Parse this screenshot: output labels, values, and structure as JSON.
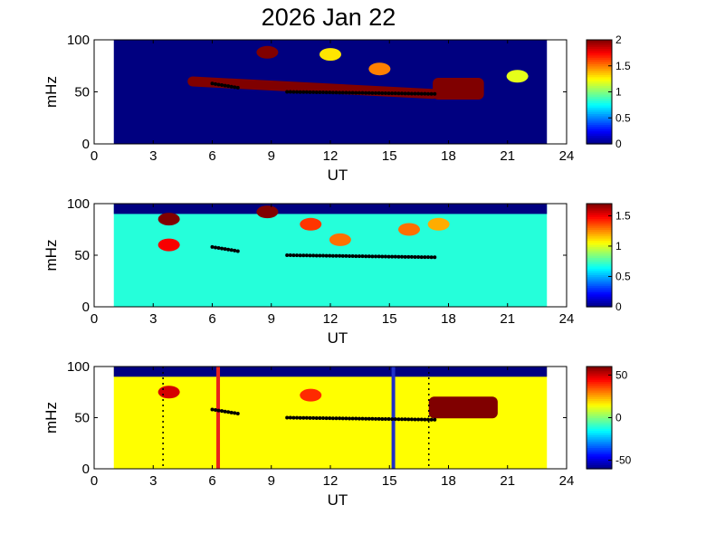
{
  "title": "2026 Jan 22",
  "chart_data": [
    {
      "type": "heatmap",
      "xlabel": "UT",
      "ylabel": "mHz",
      "xlim": [
        0,
        24
      ],
      "ylim": [
        0,
        100
      ],
      "xticks": [
        "0",
        "3",
        "6",
        "9",
        "12",
        "15",
        "18",
        "21",
        "24"
      ],
      "yticks": [
        "0",
        "50",
        "100"
      ],
      "data_range_ut": [
        1.0,
        23.0
      ],
      "colorbar": {
        "min": 0,
        "max": 2,
        "ticks": [
          "0",
          "0.5",
          "1",
          "1.5",
          "2"
        ]
      },
      "background_level": 0,
      "features": [
        {
          "ut_start": 5.0,
          "ut_end": 17.2,
          "mhz_start": 60,
          "mhz_end": 48,
          "level": 2.0,
          "description": "band"
        },
        {
          "ut_start": 17.2,
          "ut_end": 19.8,
          "mhz": 53,
          "level": 2.0
        },
        {
          "ut": 8.8,
          "mhz": 88,
          "level": 2.0
        },
        {
          "ut": 12.0,
          "mhz": 86,
          "level": 1.3
        },
        {
          "ut": 14.5,
          "mhz": 72,
          "level": 1.5
        },
        {
          "ut": 21.5,
          "mhz": 65,
          "level": 1.2
        }
      ],
      "markers": [
        {
          "ut_start": 6.0,
          "ut_end": 7.3,
          "mhz_start": 58,
          "mhz_end": 54
        },
        {
          "ut_start": 9.8,
          "ut_end": 17.3,
          "mhz_start": 50,
          "mhz_end": 48
        }
      ]
    },
    {
      "type": "heatmap",
      "xlabel": "UT",
      "ylabel": "mHz",
      "xlim": [
        0,
        24
      ],
      "ylim": [
        0,
        100
      ],
      "xticks": [
        "0",
        "3",
        "6",
        "9",
        "12",
        "15",
        "18",
        "21",
        "24"
      ],
      "yticks": [
        "0",
        "50",
        "100"
      ],
      "data_range_ut": [
        1.0,
        23.0
      ],
      "colorbar": {
        "min": 0,
        "max": 1.7,
        "ticks": [
          "0",
          "0.5",
          "1",
          "1.5"
        ]
      },
      "background_level": 0.7,
      "top_cutoff_mhz": 90,
      "features": [
        {
          "ut": 3.8,
          "mhz": 85,
          "level": 1.7
        },
        {
          "ut": 3.8,
          "mhz": 60,
          "level": 1.5
        },
        {
          "ut": 8.8,
          "mhz": 92,
          "level": 1.7
        },
        {
          "ut": 11.0,
          "mhz": 80,
          "level": 1.4
        },
        {
          "ut": 12.5,
          "mhz": 65,
          "level": 1.3
        },
        {
          "ut": 16.0,
          "mhz": 75,
          "level": 1.3
        },
        {
          "ut": 17.5,
          "mhz": 80,
          "level": 1.2
        }
      ],
      "markers": [
        {
          "ut_start": 6.0,
          "ut_end": 7.3,
          "mhz_start": 58,
          "mhz_end": 54
        },
        {
          "ut_start": 9.8,
          "ut_end": 17.3,
          "mhz_start": 50,
          "mhz_end": 48
        }
      ]
    },
    {
      "type": "heatmap",
      "xlabel": "UT",
      "ylabel": "mHz",
      "xlim": [
        0,
        24
      ],
      "ylim": [
        0,
        100
      ],
      "xticks": [
        "0",
        "3",
        "6",
        "9",
        "12",
        "15",
        "18",
        "21",
        "24"
      ],
      "yticks": [
        "0",
        "50",
        "100"
      ],
      "data_range_ut": [
        1.0,
        23.0
      ],
      "colorbar": {
        "min": -60,
        "max": 60,
        "ticks": [
          "-50",
          "0",
          "50"
        ]
      },
      "background_level": 15,
      "top_cutoff_mhz": 90,
      "features": [
        {
          "ut_start": 17.0,
          "ut_end": 20.5,
          "mhz": 60,
          "level": 60
        },
        {
          "ut": 3.8,
          "mhz": 75,
          "level": 50
        },
        {
          "ut": 11.0,
          "mhz": 72,
          "level": 40
        }
      ],
      "vertical_lines": [
        {
          "ut": 6.3,
          "color": "#e8221b"
        },
        {
          "ut": 15.2,
          "color": "#1f2fc8"
        }
      ],
      "dotted_lines": [
        {
          "ut": 3.5
        },
        {
          "ut": 17.0
        }
      ],
      "markers": [
        {
          "ut_start": 6.0,
          "ut_end": 7.3,
          "mhz_start": 58,
          "mhz_end": 54
        },
        {
          "ut_start": 9.8,
          "ut_end": 17.3,
          "mhz_start": 50,
          "mhz_end": 48
        }
      ]
    }
  ]
}
